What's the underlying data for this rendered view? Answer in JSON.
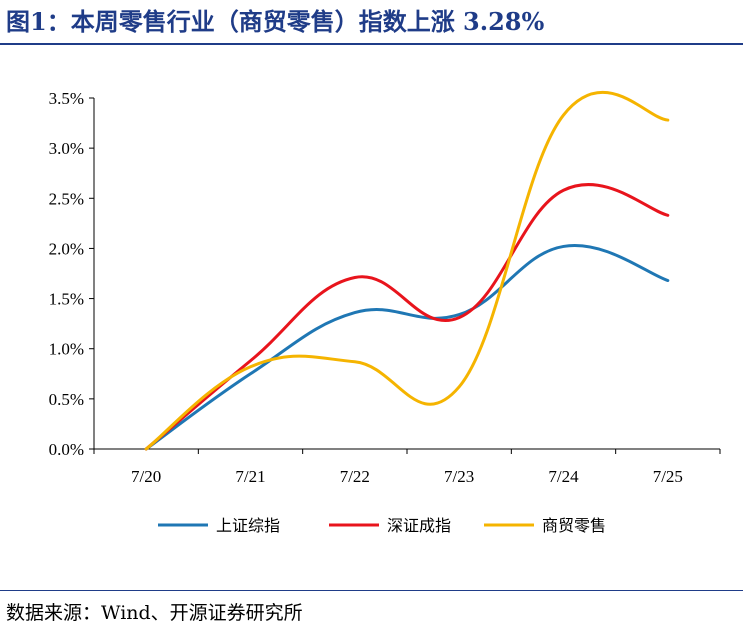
{
  "header": {
    "title": "图1：本周零售行业（商贸零售）指数上涨 3.28%"
  },
  "footer": {
    "source": "数据来源：Wind、开源证券研究所"
  },
  "chart_data": {
    "type": "line",
    "categories": [
      "7/20",
      "7/21",
      "7/22",
      "7/23",
      "7/24",
      "7/25"
    ],
    "y_ticks": [
      "0.0%",
      "0.5%",
      "1.0%",
      "1.5%",
      "2.0%",
      "2.5%",
      "3.0%",
      "3.5%"
    ],
    "ylim": [
      0,
      3.5
    ],
    "y_unit": "%",
    "grid": false,
    "legend_position": "bottom",
    "series": [
      {
        "name": "上证综指",
        "color": "#1f77b4",
        "values": [
          0.0,
          0.75,
          1.36,
          1.34,
          2.02,
          1.68
        ]
      },
      {
        "name": "深证成指",
        "color": "#e8141c",
        "values": [
          0.0,
          0.88,
          1.71,
          1.31,
          2.58,
          2.33
        ]
      },
      {
        "name": "商贸零售",
        "color": "#f5b400",
        "values": [
          0.0,
          0.82,
          0.87,
          0.62,
          3.33,
          3.28
        ]
      }
    ]
  }
}
